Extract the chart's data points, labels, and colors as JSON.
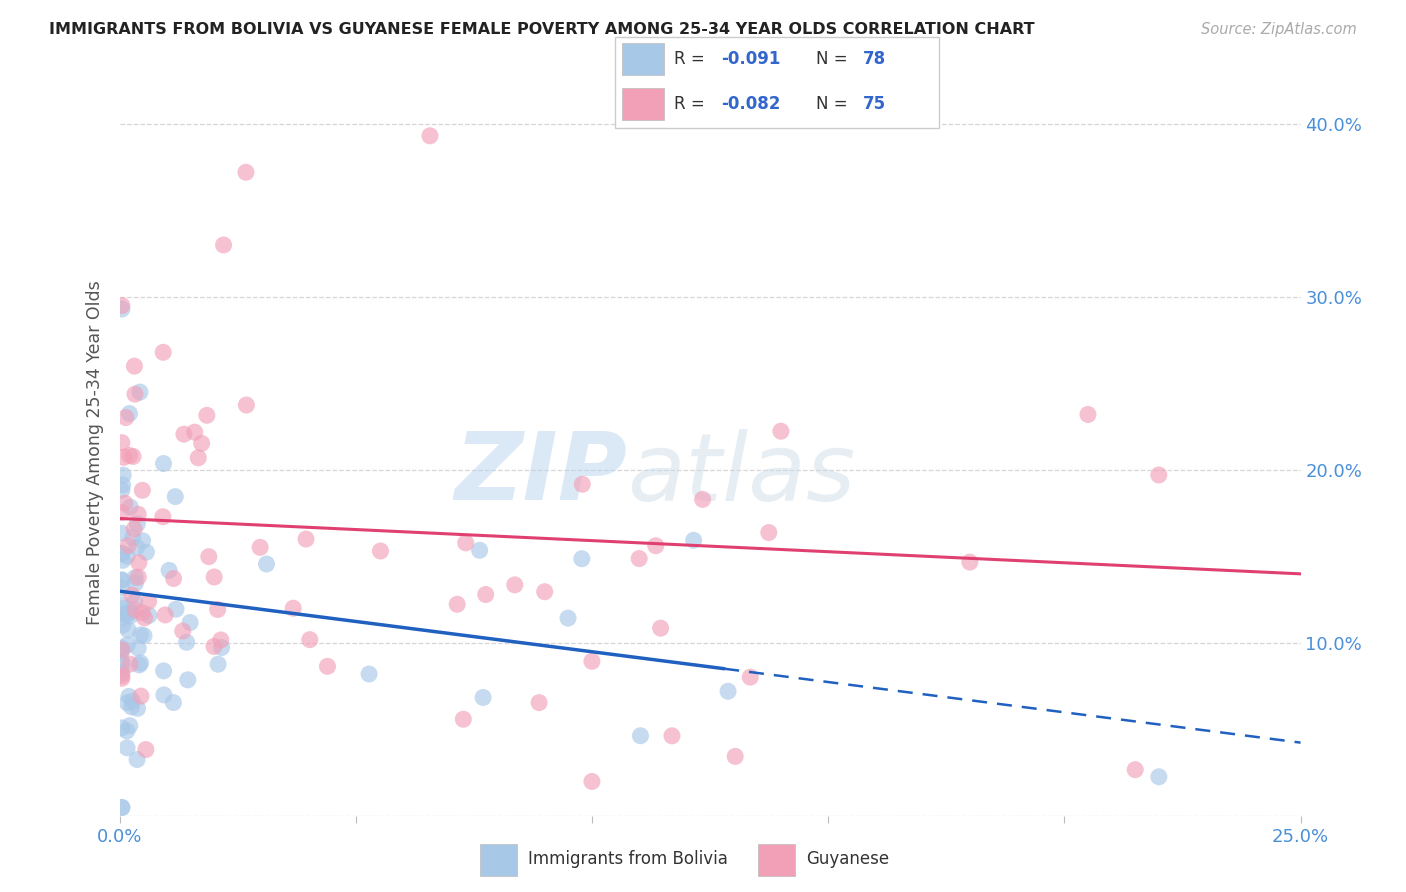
{
  "title": "IMMIGRANTS FROM BOLIVIA VS GUYANESE FEMALE POVERTY AMONG 25-34 YEAR OLDS CORRELATION CHART",
  "source": "Source: ZipAtlas.com",
  "ylabel": "Female Poverty Among 25-34 Year Olds",
  "xlim": [
    0.0,
    0.25
  ],
  "ylim": [
    0.0,
    0.42
  ],
  "bolivia_R": -0.091,
  "bolivia_N": 78,
  "guyanese_R": -0.082,
  "guyanese_N": 75,
  "bolivia_color": "#a8c8e8",
  "guyanese_color": "#f2a0b8",
  "bolivia_line_color": "#2060c0",
  "guyanese_line_color": "#e04070",
  "legend_label_bolivia": "Immigrants from Bolivia",
  "legend_label_guyanese": "Guyanese",
  "watermark_zip": "ZIP",
  "watermark_atlas": "atlas",
  "background_color": "#ffffff",
  "grid_color": "#cccccc",
  "title_color": "#222222",
  "axis_label_color": "#555555",
  "tick_color_right": "#4a90d9",
  "tick_color_bottom": "#4a90d9",
  "r_n_color": "#3366cc",
  "legend_text_color": "#333333"
}
